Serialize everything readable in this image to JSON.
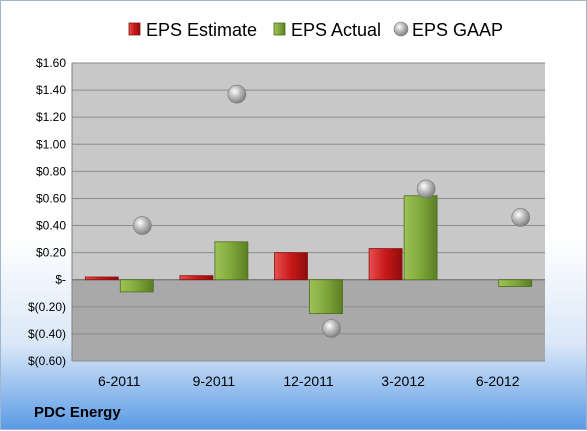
{
  "company": "PDC Energy",
  "colors": {
    "estimate": "#d42020",
    "actual": "#7fa83a",
    "gaap": "#a6a6a6",
    "plot_area": "#c9c9c9"
  },
  "chart_data": {
    "type": "bar",
    "title": "",
    "xlabel": "",
    "ylabel": "",
    "categories": [
      "6-2011",
      "9-2011",
      "12-2011",
      "3-2012",
      "6-2012"
    ],
    "series": [
      {
        "name": "EPS Estimate",
        "kind": "bar",
        "values": [
          0.02,
          0.03,
          0.2,
          0.23,
          null
        ]
      },
      {
        "name": "EPS Actual",
        "kind": "bar",
        "values": [
          -0.09,
          0.28,
          -0.25,
          0.62,
          -0.05
        ]
      },
      {
        "name": "EPS GAAP",
        "kind": "scatter",
        "values": [
          0.4,
          1.37,
          -0.36,
          0.67,
          0.46
        ]
      }
    ],
    "ylim": [
      -0.6,
      1.6
    ],
    "yticks": [
      1.6,
      1.4,
      1.2,
      1.0,
      0.8,
      0.6,
      0.4,
      0.2,
      0,
      -0.2,
      -0.4,
      -0.6
    ],
    "ytick_labels": [
      "$1.60",
      "$1.40",
      "$1.20",
      "$1.00",
      "$0.80",
      "$0.60",
      "$0.40",
      "$0.20",
      "$-",
      "$(0.20)",
      "$(0.40)",
      "$(0.60)"
    ],
    "grid": true,
    "legend_position": "top"
  }
}
